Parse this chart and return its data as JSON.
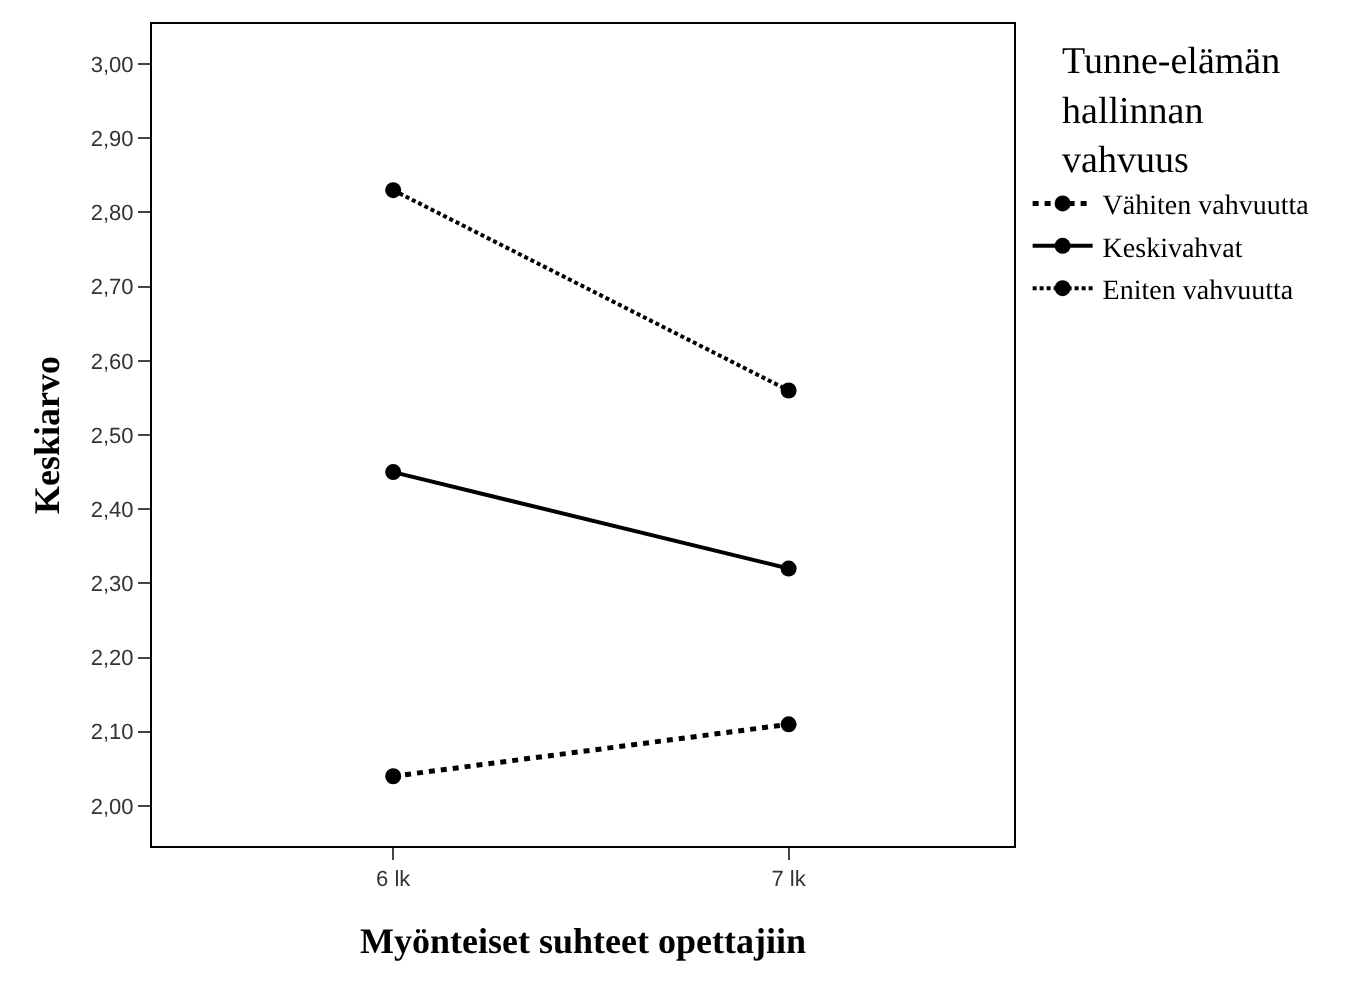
{
  "chart_data": {
    "type": "line",
    "xlabel": "Myönteiset suhteet opettajiin",
    "ylabel": "Keskiarvo",
    "legend_title": "Tunne-elämän hallinnan vahvuus",
    "categories": [
      "6 lk",
      "7 lk"
    ],
    "series": [
      {
        "name": "Vähiten vahvuutta",
        "color": "#000000",
        "values": [
          2.04,
          2.11
        ],
        "line_style": "dotted"
      },
      {
        "name": "Keskivahvat",
        "color": "#000000",
        "values": [
          2.45,
          2.32
        ],
        "line_style": "solid"
      },
      {
        "name": "Eniten vahvuutta",
        "color": "#000000",
        "values": [
          2.83,
          2.56
        ],
        "line_style": "dotted"
      }
    ],
    "marker": "circle",
    "legend": "top right",
    "ylim": [
      1.946,
      3.054
    ],
    "yticks": [
      {
        "value": 2.0,
        "label": "2,00"
      },
      {
        "value": 2.1,
        "label": "2,10"
      },
      {
        "value": 2.2,
        "label": "2,20"
      },
      {
        "value": 2.3,
        "label": "2,30"
      },
      {
        "value": 2.4,
        "label": "2,40"
      },
      {
        "value": 2.5,
        "label": "2,50"
      },
      {
        "value": 2.6,
        "label": "2,60"
      },
      {
        "value": 2.7,
        "label": "2,70"
      },
      {
        "value": 2.8,
        "label": "2,80"
      },
      {
        "value": 2.9,
        "label": "2,90"
      },
      {
        "value": 3.0,
        "label": "3,00"
      }
    ]
  }
}
